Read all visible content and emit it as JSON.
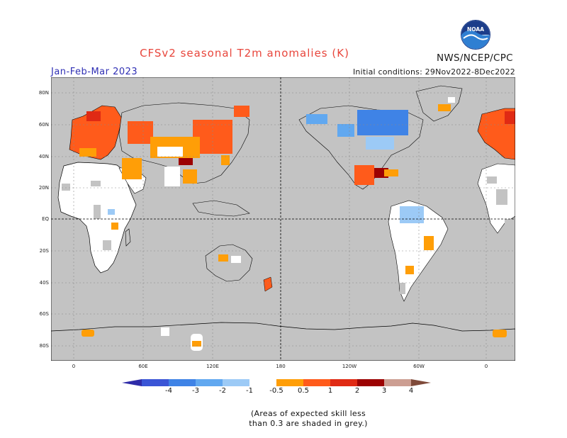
{
  "header": {
    "title": "CFSv2 seasonal T2m anomalies (K)",
    "agency": "NWS/NCEP/CPC",
    "season": "Jan-Feb-Mar 2023",
    "initial_conditions": "Initial conditions: 29Nov2022-8Dec2022",
    "logo_text": "NOAA"
  },
  "map": {
    "lat_labels": [
      "80N",
      "60N",
      "40N",
      "20N",
      "EQ",
      "20S",
      "40S",
      "60S",
      "80S"
    ],
    "lon_labels": [
      "0",
      "60E",
      "120E",
      "180",
      "120W",
      "60W",
      "0"
    ]
  },
  "colorbar": {
    "tick_labels": [
      "-4",
      "-3",
      "-2",
      "-1",
      "-0.5",
      "0.5",
      "1",
      "2",
      "3",
      "4"
    ],
    "colors": [
      "#2e2ba8",
      "#3a55d6",
      "#3f83e6",
      "#61a8f0",
      "#9ccaf6",
      "#ffffff",
      "#ff9e07",
      "#ff5b1b",
      "#e02a14",
      "#9c0202",
      "#cc9e92",
      "#7f4a3a"
    ]
  },
  "note": {
    "line1": "(Areas of expected skill less",
    "line2": "than 0.3 are shaded in grey.)"
  }
}
